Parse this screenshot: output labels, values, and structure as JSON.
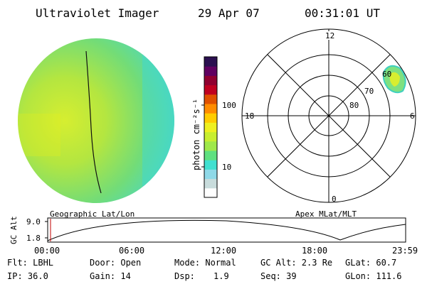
{
  "header": {
    "title": "Ultraviolet Imager",
    "date": "29 Apr 07",
    "time": "00:31:01 UT"
  },
  "colorbar": {
    "unit_label": "photon cm⁻²s⁻¹",
    "ticks": [
      "100",
      "10"
    ],
    "colors": [
      "#ffffff",
      "#c8dcdc",
      "#8fd9e8",
      "#40e0d0",
      "#5fe080",
      "#9fe84a",
      "#c8ee30",
      "#eef020",
      "#ffcc00",
      "#ff8c00",
      "#e05000",
      "#c00020",
      "#900030",
      "#600060",
      "#2b1050"
    ]
  },
  "polar": {
    "mlt_labels": {
      "top": "12",
      "left": "18",
      "right": "6",
      "bottom": "0"
    },
    "lat_labels": [
      "60",
      "70",
      "80"
    ]
  },
  "panel_labels": {
    "left": "Geographic Lat/Lon",
    "right": "Apex MLat/MLT"
  },
  "altitude_plot": {
    "ylabel": "GC Alt",
    "yticks": [
      "9.0",
      "1.8"
    ],
    "xticks": [
      "00:00",
      "06:00",
      "12:00",
      "18:00",
      "23:59"
    ]
  },
  "footer": {
    "flt": "Flt: LBHL",
    "ip": "IP: 36.0",
    "door": "Door: Open",
    "gain": "Gain: 14",
    "mode": "Mode: Normal",
    "dsp_label": "Dsp:",
    "dsp_value": "1.9",
    "gcalt": "GC Alt: 2.3 Re",
    "seq": "Seq: 39",
    "glat": "GLat: 60.7",
    "glon": "GLon: 111.6"
  }
}
